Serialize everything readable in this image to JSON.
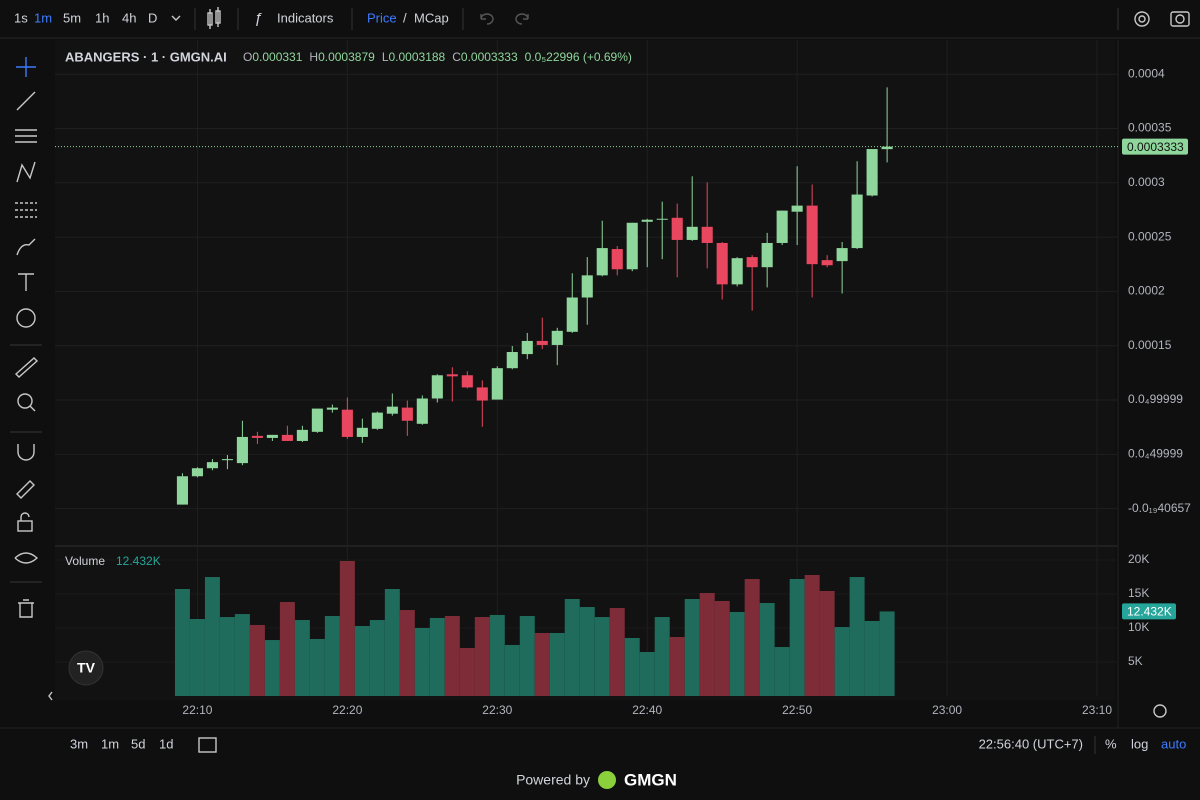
{
  "toolbar": {
    "intervals": [
      "1s",
      "1m",
      "5m",
      "1h",
      "4h",
      "D"
    ],
    "indicators": "Indicators",
    "price": "Price",
    "slash": "/",
    "mcap": "MCap"
  },
  "legend": {
    "symbol": "ABANGERS · 1 · GMGN.AI",
    "o": "O",
    "h": "H",
    "l": "L",
    "c": "C",
    "change": "0.0₅22996 (+0.69%)"
  },
  "chart_data": {
    "type": "candlestick",
    "grid": true,
    "up_color": "#8fd69c",
    "down_color": "#e8475f",
    "vol_up_color": "#1f6b5c",
    "vol_down_color": "#7e2d38",
    "last_color": "#8fd69c",
    "x": [
      1329,
      1330,
      1331,
      1332,
      1333,
      1334,
      1335,
      1336,
      1337,
      1338,
      1339,
      1340,
      1341,
      1342,
      1343,
      1344,
      1345,
      1346,
      1347,
      1348,
      1349,
      1350,
      1351,
      1352,
      1353,
      1354,
      1355,
      1356,
      1357,
      1358,
      1359,
      1360,
      1361,
      1362,
      1363,
      1364,
      1365,
      1366,
      1367,
      1368,
      1369,
      1370,
      1371,
      1372,
      1373,
      1374,
      1375,
      1376
    ],
    "open": [
      3.7e-06,
      2.98e-05,
      3.72e-05,
      4.46e-05,
      4.19e-05,
      6.7e-05,
      6.51e-05,
      6.79e-05,
      6.23e-05,
      7.07e-05,
      9.11e-05,
      9.11e-05,
      6.6e-05,
      7.35e-05,
      8.74e-05,
      9.3e-05,
      7.81e-05,
      0.0001014,
      0.0001237,
      0.0001228,
      0.0001116,
      0.0001004,
      0.0001293,
      0.0001423,
      0.0001544,
      0.0001507,
      0.0001628,
      0.0001944,
      0.0002148,
      0.000239,
      0.0002204,
      0.0002641,
      0.000266,
      0.0002678,
      0.0002474,
      0.0002595,
      0.0002446,
      0.0002065,
      0.0002316,
      0.0002223,
      0.0002446,
      0.0002734,
      0.000279,
      0.0002288,
      0.0002279,
      0.0002399,
      0.0002883,
      0.000331
    ],
    "high": [
      3.26e-05,
      3.81e-05,
      4.56e-05,
      4.93e-05,
      8.09e-05,
      7.07e-05,
      6.79e-05,
      7.63e-05,
      7.63e-05,
      9.21e-05,
      9.58e-05,
      0.0001023,
      8.28e-05,
      8.93e-05,
      0.000106,
      9.95e-05,
      0.0001042,
      0.0001237,
      0.0001302,
      0.0001265,
      0.0001181,
      0.0001311,
      0.0001497,
      0.0001618,
      0.0001758,
      0.0001665,
      0.0002167,
      0.0002316,
      0.0002651,
      0.0002418,
      0.0002632,
      0.0002669,
      0.0002827,
      0.0002809,
      0.000306,
      0.0003004,
      0.0002455,
      0.0002316,
      0.0002334,
      0.0002539,
      0.0002744,
      0.0003153,
      0.0002985,
      0.0002334,
      0.0002455,
      0.0003199,
      0.0003292,
      0.0003879
    ],
    "low": [
      3.7e-06,
      2.88e-05,
      3.53e-05,
      3.63e-05,
      4e-05,
      5.95e-05,
      6.23e-05,
      6.23e-05,
      6.14e-05,
      6.98e-05,
      8.84e-05,
      6.42e-05,
      6.05e-05,
      7.25e-05,
      8.56e-05,
      6.7e-05,
      7.72e-05,
      9.77e-05,
      9.86e-05,
      0.0001107,
      7.53e-05,
      0.0001004,
      0.0001283,
      0.0001376,
      0.0001469,
      0.0001321,
      0.0001618,
      0.0001693,
      0.0002139,
      0.0002148,
      0.0002186,
      0.0002223,
      0.0002297,
      0.000213,
      0.0002465,
      0.0002213,
      0.0001925,
      0.0002046,
      0.0001823,
      0.0002037,
      0.0002427,
      0.0002427,
      0.0001944,
      0.0002223,
      0.0001981,
      0.000239,
      0.0002874,
      0.0003188
    ],
    "close": [
      2.98e-05,
      3.72e-05,
      4.28e-05,
      4.56e-05,
      6.6e-05,
      6.51e-05,
      6.79e-05,
      6.23e-05,
      7.25e-05,
      9.21e-05,
      9.3e-05,
      6.6e-05,
      7.44e-05,
      8.84e-05,
      9.39e-05,
      8.09e-05,
      0.0001014,
      0.0001228,
      0.0001218,
      0.0001116,
      9.95e-05,
      0.0001293,
      0.0001442,
      0.0001544,
      0.0001507,
      0.0001637,
      0.0001944,
      0.0002148,
      0.0002399,
      0.0002204,
      0.0002632,
      0.000266,
      0.0002669,
      0.0002474,
      0.0002595,
      0.0002446,
      0.0002065,
      0.0002306,
      0.0002223,
      0.0002446,
      0.0002744,
      0.000279,
      0.0002251,
      0.0002241,
      0.0002399,
      0.0002892,
      0.0003311,
      0.0003333
    ],
    "volume": [
      15730,
      11320,
      17490,
      11610,
      12050,
      10440,
      8230,
      13820,
      11170,
      8380,
      11760,
      19850,
      10290,
      11170,
      15730,
      12640,
      10000,
      11470,
      11760,
      7060,
      11610,
      11910,
      7500,
      11760,
      9260,
      9260,
      14260,
      13080,
      11610,
      12940,
      8530,
      6470,
      11610,
      8670,
      14260,
      15140,
      13970,
      12350,
      17200,
      13670,
      7200,
      17200,
      17790,
      15440,
      10140,
      17490,
      11030,
      12432
    ],
    "volume_title": "Volume",
    "volume_label": "12.432K",
    "xlim": [
      1320.5,
      1391.2
    ],
    "xticks": [
      {
        "value": 1330,
        "label": "22:10"
      },
      {
        "value": 1340,
        "label": "22:20"
      },
      {
        "value": 1350,
        "label": "22:30"
      },
      {
        "value": 1360,
        "label": "22:40"
      },
      {
        "value": 1370,
        "label": "22:50"
      },
      {
        "value": 1380,
        "label": "23:00"
      },
      {
        "value": 1390,
        "label": "23:10"
      }
    ],
    "ylim": [
      -3.35e-05,
      0.0004315
    ],
    "yticks": [
      {
        "value": 0.0004,
        "label": "0.0004"
      },
      {
        "value": 0.00035,
        "label": "0.00035"
      },
      {
        "value": 0.0003,
        "label": "0.0003"
      },
      {
        "value": 0.00025,
        "label": "0.00025"
      },
      {
        "value": 0.0002,
        "label": "0.0002"
      },
      {
        "value": 0.00015,
        "label": "0.00015"
      },
      {
        "value": 0.0001,
        "label": "0.0₄99999"
      },
      {
        "value": 5e-05,
        "label": "0.0₄49999"
      },
      {
        "value": -4.0657e-20,
        "label": "-0.0₁₉40657"
      }
    ],
    "vlim": [
      0,
      22050
    ],
    "vticks": [
      {
        "value": 20000,
        "label": "20K"
      },
      {
        "value": 15000,
        "label": "15K"
      },
      {
        "value": 10000,
        "label": "10K"
      },
      {
        "value": 5000,
        "label": "5K"
      }
    ]
  },
  "bottom": {
    "ranges": [
      "3m",
      "1m",
      "5d",
      "1d"
    ],
    "clock": "22:56:40 (UTC+7)",
    "percent": "%",
    "log": "log",
    "auto": "auto"
  },
  "footer": {
    "powered": "Powered by",
    "brand": "GMGN"
  }
}
